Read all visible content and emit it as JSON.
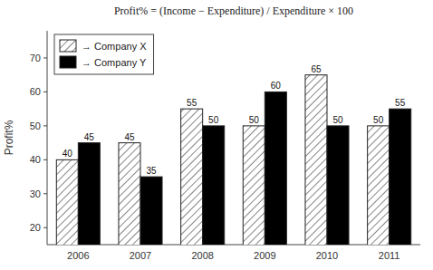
{
  "chart_data": {
    "type": "bar",
    "annotations": [
      "Profit% = (Income − Expenditure) / Expenditure × 100"
    ],
    "y_label": "Profit%",
    "categories": [
      "2006",
      "2007",
      "2008",
      "2009",
      "2010",
      "2011"
    ],
    "series": [
      {
        "name": "→  Company X",
        "color": "white",
        "values": [
          40,
          45,
          55,
          50,
          65,
          50
        ]
      },
      {
        "name": "→  Company Y",
        "color": "black",
        "values": [
          45,
          35,
          50,
          60,
          50,
          55
        ]
      }
    ],
    "ylim": [
      15,
      78
    ],
    "yticks": [
      20,
      30,
      40,
      50,
      60,
      70
    ],
    "grid": false,
    "legend": "upper left",
    "data_labels": true
  }
}
